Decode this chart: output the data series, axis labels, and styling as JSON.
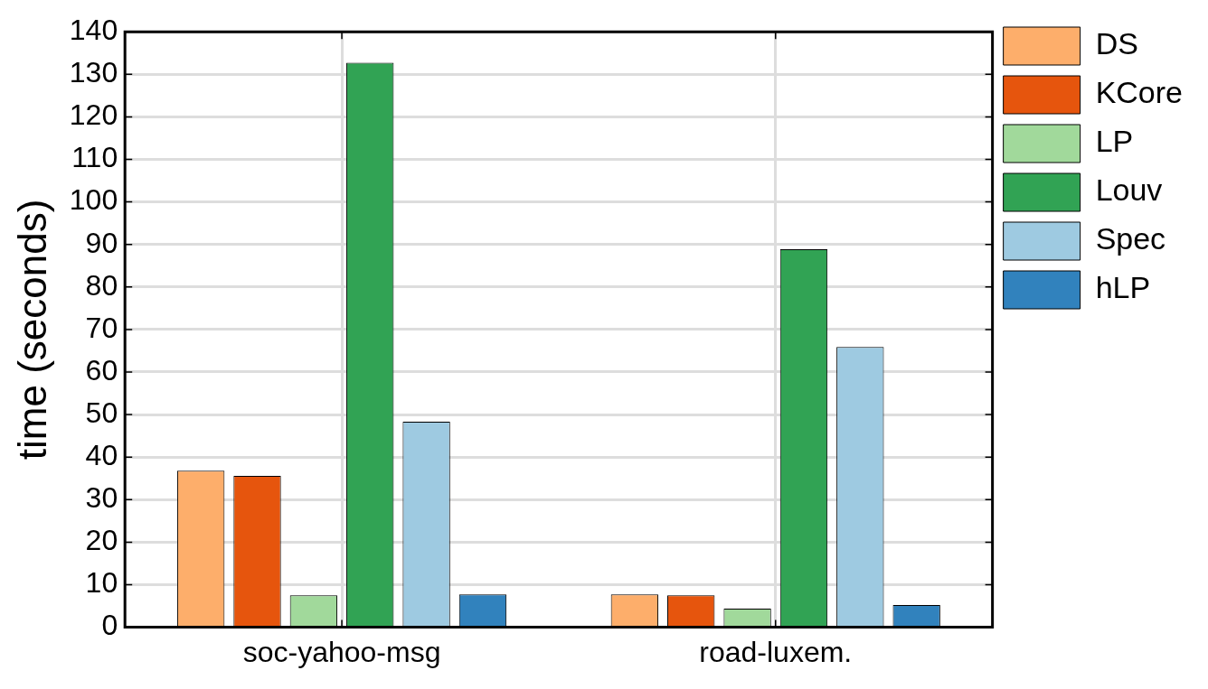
{
  "chart_data": {
    "type": "bar",
    "ylabel": "time (seconds)",
    "categories": [
      "soc-yahoo-msg",
      "road-luxem."
    ],
    "series": [
      {
        "name": "DS",
        "color": "#fdae6b",
        "values": [
          36.8,
          7.7
        ]
      },
      {
        "name": "KCore",
        "color": "#e6550d",
        "values": [
          35.6,
          7.5
        ]
      },
      {
        "name": "LP",
        "color": "#a1d99b",
        "values": [
          7.5,
          4.4
        ]
      },
      {
        "name": "Louv",
        "color": "#31a354",
        "values": [
          132.7,
          88.9
        ]
      },
      {
        "name": "Spec",
        "color": "#9ecae1",
        "values": [
          48.3,
          65.9
        ]
      },
      {
        "name": "hLP",
        "color": "#3182bd",
        "values": [
          7.7,
          5.2
        ]
      }
    ],
    "ylim": [
      0,
      140
    ],
    "yticks": [
      0,
      10,
      20,
      30,
      40,
      50,
      60,
      70,
      80,
      90,
      100,
      110,
      120,
      130,
      140
    ],
    "grid": true,
    "legend": "top right"
  }
}
